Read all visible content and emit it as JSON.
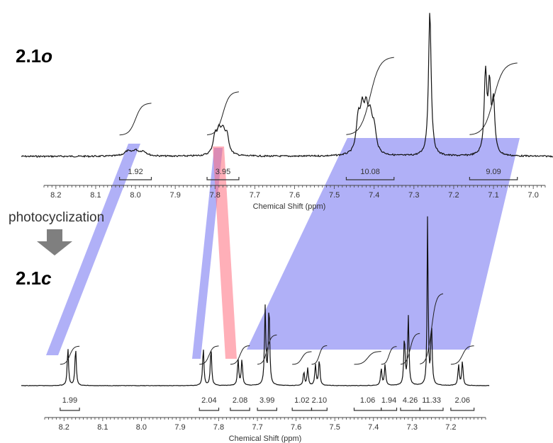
{
  "labels": {
    "top_compound": "2.1",
    "top_compound_suffix": "o",
    "bottom_compound": "2.1",
    "bottom_compound_suffix": "c",
    "reaction": "photocyclization",
    "arrow_icon": "down-arrow-icon"
  },
  "colors": {
    "blue_band": "#6f6ff0",
    "red_band": "#ff6e7e",
    "trace": "#111111"
  },
  "chart_data": [
    {
      "type": "line",
      "name": "2.1o",
      "xlabel": "Chemical Shift (ppm)",
      "xlim": [
        8.23,
        6.97
      ],
      "x_reversed": true,
      "ticks": [
        "8.2",
        "8.1",
        "8.0",
        "7.9",
        "7.8",
        "7.7",
        "7.6",
        "7.5",
        "7.4",
        "7.3",
        "7.2",
        "7.1",
        "7.0"
      ],
      "peaks": [
        {
          "ppm": 8.02,
          "height": 0.03,
          "width": 0.01
        },
        {
          "ppm": 8.0,
          "height": 0.035,
          "width": 0.01
        },
        {
          "ppm": 7.98,
          "height": 0.03,
          "width": 0.01
        },
        {
          "ppm": 7.8,
          "height": 0.12,
          "width": 0.006
        },
        {
          "ppm": 7.79,
          "height": 0.14,
          "width": 0.006
        },
        {
          "ppm": 7.78,
          "height": 0.14,
          "width": 0.006
        },
        {
          "ppm": 7.77,
          "height": 0.12,
          "width": 0.006
        },
        {
          "ppm": 7.44,
          "height": 0.22,
          "width": 0.006
        },
        {
          "ppm": 7.43,
          "height": 0.26,
          "width": 0.006
        },
        {
          "ppm": 7.42,
          "height": 0.25,
          "width": 0.006
        },
        {
          "ppm": 7.41,
          "height": 0.22,
          "width": 0.006
        },
        {
          "ppm": 7.4,
          "height": 0.16,
          "width": 0.006
        },
        {
          "ppm": 7.26,
          "height": 1.0,
          "width": 0.004
        },
        {
          "ppm": 7.12,
          "height": 0.55,
          "width": 0.004
        },
        {
          "ppm": 7.11,
          "height": 0.45,
          "width": 0.004
        },
        {
          "ppm": 7.1,
          "height": 0.35,
          "width": 0.004
        }
      ],
      "integrals": [
        {
          "value": "1.92",
          "from": 8.04,
          "to": 7.96
        },
        {
          "value": "3.95",
          "from": 7.82,
          "to": 7.74
        },
        {
          "value": "10.08",
          "from": 7.47,
          "to": 7.35
        },
        {
          "value": "9.09",
          "from": 7.16,
          "to": 7.04
        }
      ]
    },
    {
      "type": "line",
      "name": "2.1c",
      "xlabel": "Chemical Shift (ppm)",
      "xlim": [
        8.25,
        7.11
      ],
      "x_reversed": true,
      "ticks": [
        "8.2",
        "8.1",
        "8.0",
        "7.9",
        "7.8",
        "7.7",
        "7.6",
        "7.5",
        "7.4",
        "7.3",
        "7.2"
      ],
      "peaks": [
        {
          "ppm": 8.19,
          "height": 0.22,
          "width": 0.002
        },
        {
          "ppm": 8.17,
          "height": 0.22,
          "width": 0.002
        },
        {
          "ppm": 7.84,
          "height": 0.22,
          "width": 0.002
        },
        {
          "ppm": 7.82,
          "height": 0.22,
          "width": 0.002
        },
        {
          "ppm": 7.75,
          "height": 0.15,
          "width": 0.002
        },
        {
          "ppm": 7.74,
          "height": 0.15,
          "width": 0.002
        },
        {
          "ppm": 7.68,
          "height": 0.45,
          "width": 0.002
        },
        {
          "ppm": 7.67,
          "height": 0.47,
          "width": 0.002
        },
        {
          "ppm": 7.58,
          "height": 0.08,
          "width": 0.002
        },
        {
          "ppm": 7.57,
          "height": 0.1,
          "width": 0.002
        },
        {
          "ppm": 7.55,
          "height": 0.12,
          "width": 0.002
        },
        {
          "ppm": 7.54,
          "height": 0.15,
          "width": 0.002
        },
        {
          "ppm": 7.38,
          "height": 0.1,
          "width": 0.002
        },
        {
          "ppm": 7.37,
          "height": 0.12,
          "width": 0.002
        },
        {
          "ppm": 7.32,
          "height": 0.28,
          "width": 0.002
        },
        {
          "ppm": 7.31,
          "height": 0.4,
          "width": 0.002
        },
        {
          "ppm": 7.26,
          "height": 1.0,
          "width": 0.0015
        },
        {
          "ppm": 7.25,
          "height": 0.35,
          "width": 0.002
        },
        {
          "ppm": 7.18,
          "height": 0.12,
          "width": 0.002
        },
        {
          "ppm": 7.17,
          "height": 0.14,
          "width": 0.002
        }
      ],
      "integrals": [
        {
          "value": "1.99",
          "from": 8.21,
          "to": 8.16
        },
        {
          "value": "2.04",
          "from": 7.85,
          "to": 7.8
        },
        {
          "value": "2.08",
          "from": 7.77,
          "to": 7.72
        },
        {
          "value": "3.99",
          "from": 7.7,
          "to": 7.65
        },
        {
          "value": "1.02",
          "from": 7.61,
          "to": 7.56
        },
        {
          "value": "2.10",
          "from": 7.56,
          "to": 7.52
        },
        {
          "value": "1.06",
          "from": 7.45,
          "to": 7.38
        },
        {
          "value": "1.94",
          "from": 7.38,
          "to": 7.34
        },
        {
          "value": "4.26",
          "from": 7.33,
          "to": 7.28
        },
        {
          "value": "11.33",
          "from": 7.28,
          "to": 7.22
        },
        {
          "value": "2.06",
          "from": 7.2,
          "to": 7.14
        }
      ]
    }
  ]
}
